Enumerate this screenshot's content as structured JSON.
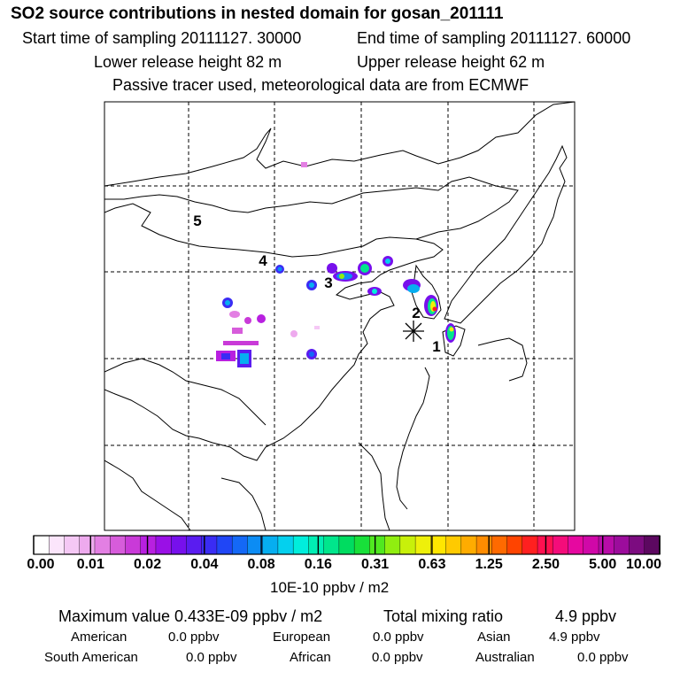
{
  "header": {
    "title": "SO2 source contributions in nested domain for gosan_201111",
    "start_time": "Start time of sampling 20111127. 30000",
    "end_time": "End time of sampling 20111127. 60000",
    "lower_release": "Lower release height   82 m",
    "upper_release": "Upper release height   62 m",
    "tracer_note": "Passive tracer used, meteorological data are from ECMWF"
  },
  "map": {
    "markers": [
      {
        "label": "1",
        "pos": [
          493,
          391
        ]
      },
      {
        "label": "2",
        "pos": [
          470,
          353
        ]
      },
      {
        "label": "3",
        "pos": [
          371,
          319
        ]
      },
      {
        "label": "4",
        "pos": [
          297,
          294
        ]
      },
      {
        "label": "5",
        "pos": [
          223,
          249
        ]
      }
    ]
  },
  "colorbar": {
    "ticks": [
      "0.00",
      "0.01",
      "0.02",
      "0.04",
      "0.08",
      "0.16",
      "0.31",
      "0.63",
      "1.25",
      "2.50",
      "5.00",
      "10.00"
    ],
    "colors": [
      "#ffffff",
      "#fbe5fb",
      "#f5c8f5",
      "#eeaaee",
      "#e37fe3",
      "#d75cdb",
      "#c93ad8",
      "#b820e0",
      "#9a10e6",
      "#7710ec",
      "#5a1cf0",
      "#3a2cf4",
      "#2046f6",
      "#1468f6",
      "#0c8cf4",
      "#06aef0",
      "#04d0ee",
      "#00eedc",
      "#00eeb4",
      "#00e68c",
      "#00dc60",
      "#18e03a",
      "#50e820",
      "#90ee10",
      "#c8f00a",
      "#eef00a",
      "#ffe600",
      "#ffca00",
      "#ffac00",
      "#ff8c00",
      "#ff6a00",
      "#ff4400",
      "#ff2020",
      "#ff1050",
      "#f40c7a",
      "#e608a0",
      "#d008a8",
      "#b80ca8",
      "#9c0c9c",
      "#7c0c80",
      "#5c0860"
    ],
    "unit_label": "10E-10 ppbv / m2"
  },
  "footer": {
    "max_value": "Maximum value  0.433E-09 ppbv / m2",
    "total_label": "Total mixing ratio",
    "total_value": "4.9 ppbv",
    "regions": [
      {
        "name": "American",
        "value": "0.0 ppbv"
      },
      {
        "name": "European",
        "value": "0.0 ppbv"
      },
      {
        "name": "Asian",
        "value": "4.9 ppbv"
      },
      {
        "name": "South American",
        "value": "0.0 ppbv"
      },
      {
        "name": "African",
        "value": "0.0 ppbv"
      },
      {
        "name": "Australian",
        "value": "0.0 ppbv"
      }
    ]
  },
  "chart_data": {
    "type": "heatmap",
    "title": "SO2 source contributions in nested domain for gosan_201111",
    "colorbar_levels": [
      0.0,
      0.01,
      0.02,
      0.04,
      0.08,
      0.16,
      0.31,
      0.63,
      1.25,
      2.5,
      5.0,
      10.0
    ],
    "colorbar_unit": "10E-10 ppbv / m2",
    "receptor": "gosan",
    "max_value": "0.433E-09 ppbv / m2",
    "total_mixing_ratio_ppbv": 4.9,
    "legend_placement": "bottom"
  }
}
